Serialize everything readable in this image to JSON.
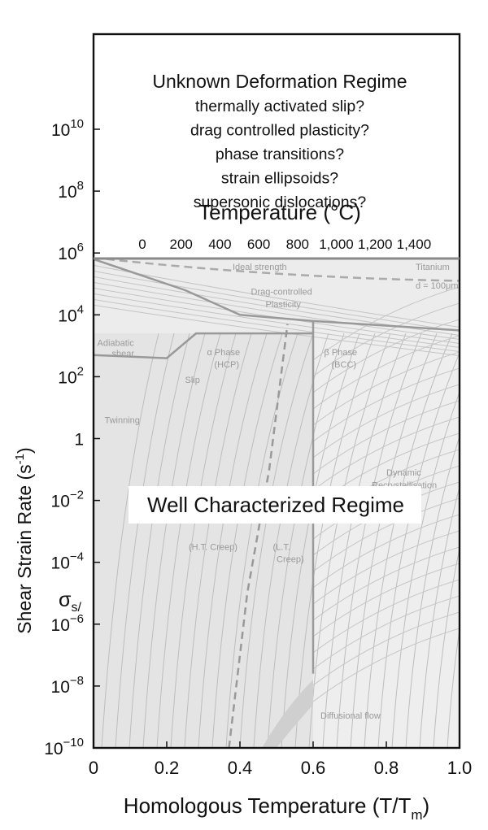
{
  "chart_data": {
    "type": "deformation-map",
    "xlabel_main": "Homologous Temperature (T/T",
    "xlabel_sub": "m",
    "xlabel_close": ")",
    "ylabel": "Shear Strain Rate (s",
    "ylabel_sup": "-1",
    "ylabel_close": ")",
    "y_side_symbol": "σ",
    "y_side_sub": "s/",
    "xlim": [
      0,
      1
    ],
    "x_ticks": [
      "0",
      "0.2",
      "0.4",
      "0.6",
      "0.8",
      "1.0"
    ],
    "y_scale": "log",
    "ylim_exp": [
      -10,
      12
    ],
    "y_ticks": [
      {
        "exp": 10,
        "base": "10",
        "sup": "10"
      },
      {
        "exp": 8,
        "base": "10",
        "sup": "8"
      },
      {
        "exp": 6,
        "base": "10",
        "sup": "6"
      },
      {
        "exp": 4,
        "base": "10",
        "sup": "4"
      },
      {
        "exp": 2,
        "base": "10",
        "sup": "2"
      },
      {
        "exp": 0,
        "base": "1",
        "sup": ""
      },
      {
        "exp": -2,
        "base": "10",
        "sup": "−2"
      },
      {
        "exp": -4,
        "base": "10",
        "sup": "−4"
      },
      {
        "exp": -6,
        "base": "10",
        "sup": "−6"
      },
      {
        "exp": -8,
        "base": "10",
        "sup": "−8"
      },
      {
        "exp": -10,
        "base": "10",
        "sup": "−10"
      }
    ],
    "top_axis": {
      "title": "Temperature (°C)",
      "ticks": [
        {
          "label": "0",
          "x": 0.0
        },
        {
          "label": "200",
          "x": 0.106
        },
        {
          "label": "400",
          "x": 0.212
        },
        {
          "label": "600",
          "x": 0.318
        },
        {
          "label": "800",
          "x": 0.424
        },
        {
          "label": "1,000",
          "x": 0.53
        },
        {
          "label": "1,200",
          "x": 0.636
        },
        {
          "label": "1,400",
          "x": 0.742
        }
      ]
    },
    "unknown_regime": {
      "title": "Unknown Deformation Regime",
      "lines": [
        "thermally activated slip?",
        "drag controlled plasticity?",
        "phase transitions?",
        "strain ellipsoids?",
        "supersonic dislocations?"
      ]
    },
    "well_regime_label": "Well Characterized Regime",
    "map_labels": {
      "ideal_strength": "Ideal strength",
      "titanium": "Titanium",
      "grain_size": "d = 100μm",
      "drag": "Drag-controlled",
      "plasticity": "Plasticity",
      "adiabatic": "Adiabatic",
      "shear": "shear",
      "alpha_phase": "α Phase",
      "hcp": "(HCP)",
      "beta_phase": "β Phase",
      "bcc": "(BCC)",
      "slip": "Slip",
      "twinning": "Twinning",
      "dynamic": "Dynamic",
      "recryst": "Recrystallisation",
      "ht_creep": "(H.T. Creep)",
      "lt_creep": "(L.T.",
      "creep": "Creep)",
      "diffusional": "Diffusional flow"
    },
    "boundaries": {
      "phase_transition_x": 0.6,
      "dashed_boundary": [
        [
          0.37,
          -10
        ],
        [
          0.42,
          -5
        ],
        [
          0.48,
          -1
        ],
        [
          0.53,
          3.7
        ]
      ],
      "adiabatic_boundary": [
        [
          0.0,
          2.7
        ],
        [
          0.2,
          2.6
        ],
        [
          0.28,
          3.4
        ],
        [
          0.6,
          3.4
        ]
      ],
      "drag_boundary": [
        [
          0.0,
          5.8
        ],
        [
          0.25,
          4.8
        ],
        [
          0.4,
          4.0
        ],
        [
          0.6,
          3.8
        ],
        [
          1.0,
          3.5
        ]
      ]
    }
  }
}
